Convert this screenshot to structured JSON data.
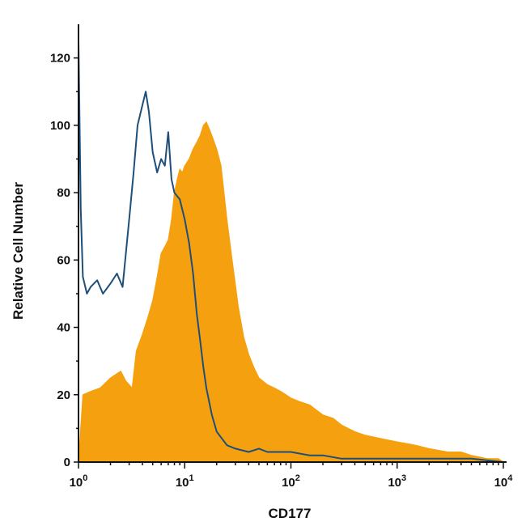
{
  "chart_data": {
    "type": "area",
    "xlabel": "CD177",
    "ylabel": "Relative Cell Number",
    "xscale": "log",
    "xlim": [
      1,
      10000
    ],
    "ylim": [
      0,
      130
    ],
    "grid": false,
    "legend": "none",
    "x_ticks": [
      {
        "value": 1,
        "base": "10",
        "exp": "0"
      },
      {
        "value": 10,
        "base": "10",
        "exp": "1"
      },
      {
        "value": 100,
        "base": "10",
        "exp": "2"
      },
      {
        "value": 1000,
        "base": "10",
        "exp": "3"
      },
      {
        "value": 10000,
        "base": "10",
        "exp": "4"
      }
    ],
    "y_ticks": [
      0,
      20,
      40,
      60,
      80,
      100,
      120
    ],
    "series": [
      {
        "style": "filled",
        "color": "#f5a00f",
        "x": [
          1,
          1.1,
          1.3,
          1.6,
          2,
          2.5,
          2.8,
          3.2,
          3.5,
          4,
          4.5,
          5,
          5.5,
          6,
          6.5,
          7,
          7.5,
          8,
          8.5,
          9,
          9.5,
          10,
          11,
          12,
          13,
          14,
          15,
          16,
          17,
          18,
          20,
          22,
          25,
          28,
          32,
          36,
          40,
          45,
          50,
          60,
          70,
          80,
          90,
          100,
          120,
          150,
          200,
          250,
          300,
          400,
          500,
          700,
          1000,
          1500,
          2000,
          3000,
          4000,
          5000,
          6000,
          7000,
          8000,
          9000,
          10000
        ],
        "y": [
          0,
          20,
          21,
          22,
          25,
          27,
          24,
          22,
          33,
          38,
          43,
          48,
          55,
          62,
          64,
          66,
          72,
          80,
          84,
          87,
          86,
          88,
          90,
          93,
          95,
          97,
          100,
          101,
          99,
          97,
          93,
          88,
          72,
          60,
          46,
          37,
          32,
          28,
          25,
          23,
          22,
          21,
          20,
          19,
          18,
          17,
          14,
          13,
          11,
          9,
          8,
          7,
          6,
          5,
          4,
          3,
          3,
          2,
          1.5,
          1,
          1,
          1,
          0
        ]
      },
      {
        "style": "line",
        "color": "#1e4f7a",
        "x": [
          1,
          1.05,
          1.1,
          1.2,
          1.3,
          1.5,
          1.7,
          2,
          2.3,
          2.6,
          3,
          3.3,
          3.6,
          4,
          4.3,
          4.6,
          5,
          5.5,
          6,
          6.5,
          7,
          7.5,
          8,
          9,
          10,
          11,
          12,
          13,
          14,
          15,
          16,
          18,
          20,
          25,
          30,
          40,
          50,
          60,
          80,
          100,
          150,
          200,
          300,
          500,
          1000,
          2000,
          5000,
          10000
        ],
        "y": [
          125,
          75,
          55,
          50,
          52,
          54,
          50,
          53,
          56,
          52,
          72,
          86,
          100,
          106,
          110,
          104,
          92,
          86,
          90,
          88,
          98,
          84,
          80,
          78,
          72,
          65,
          56,
          44,
          36,
          28,
          22,
          14,
          9,
          5,
          4,
          3,
          4,
          3,
          3,
          3,
          2,
          2,
          1,
          1,
          1,
          1,
          1,
          0
        ]
      }
    ]
  }
}
